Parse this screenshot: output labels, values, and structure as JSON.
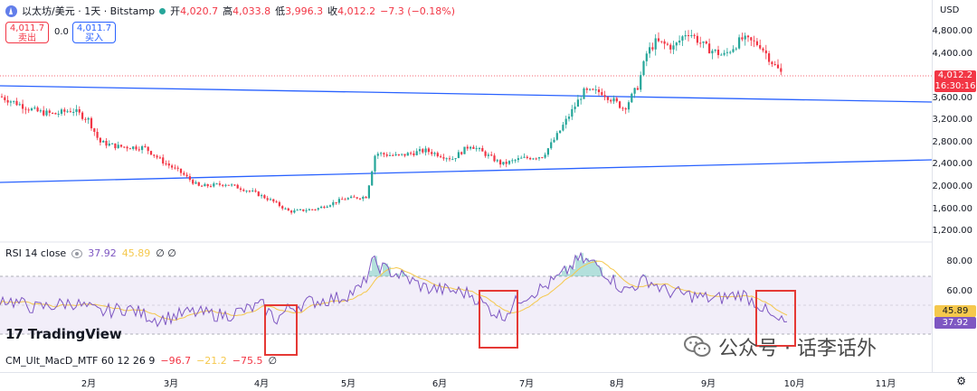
{
  "symbol": {
    "title": "以太坊/美元 · 1天 · Bitstamp",
    "icon": "ethereum-icon",
    "status_color": "#26a69a"
  },
  "ohlc": {
    "open_label": "开",
    "open": "4,020.7",
    "high_label": "高",
    "high": "4,033.8",
    "low_label": "低",
    "low": "3,996.3",
    "close_label": "收",
    "close": "4,012.2",
    "change": "−7.3 (−0.18%)"
  },
  "trade": {
    "sell_price": "4,011.7",
    "sell_label": "卖出",
    "spread": "0.0",
    "buy_price": "4,011.7",
    "buy_label": "买入"
  },
  "price_axis": {
    "currency": "USD",
    "ticks": [
      "4,800.00",
      "4,400.00",
      "3,600.00",
      "3,200.00",
      "2,800.00",
      "2,400.00",
      "2,000.00",
      "1,600.00",
      "1,200.00"
    ],
    "current_price": "4,012.2",
    "countdown": "16:30:16"
  },
  "rsi": {
    "label": "RSI 14 close",
    "value": "37.92",
    "ma_value": "45.89",
    "extra": "∅ ∅",
    "ticks": [
      "80.00",
      "60.00"
    ],
    "tag_ma": "45.89",
    "tag_rsi": "37.92",
    "line_color": "#7e57c2",
    "ma_color": "#f5c84c"
  },
  "macd": {
    "label": "CM_Ult_MacD_MTF 60 12 26 9",
    "v1": "−96.7",
    "v2": "−21.2",
    "v3": "−75.5",
    "extra": "∅"
  },
  "brand": {
    "name": "TradingView",
    "mark": "17"
  },
  "watermark": {
    "text": "公众号 · 话李话外"
  },
  "time_axis": {
    "months": [
      "2月",
      "3月",
      "4月",
      "5月",
      "6月",
      "7月",
      "8月",
      "9月",
      "10月",
      "11月"
    ]
  },
  "colors": {
    "up": "#26a69a",
    "down": "#f23645",
    "trendline": "#2962ff"
  }
}
